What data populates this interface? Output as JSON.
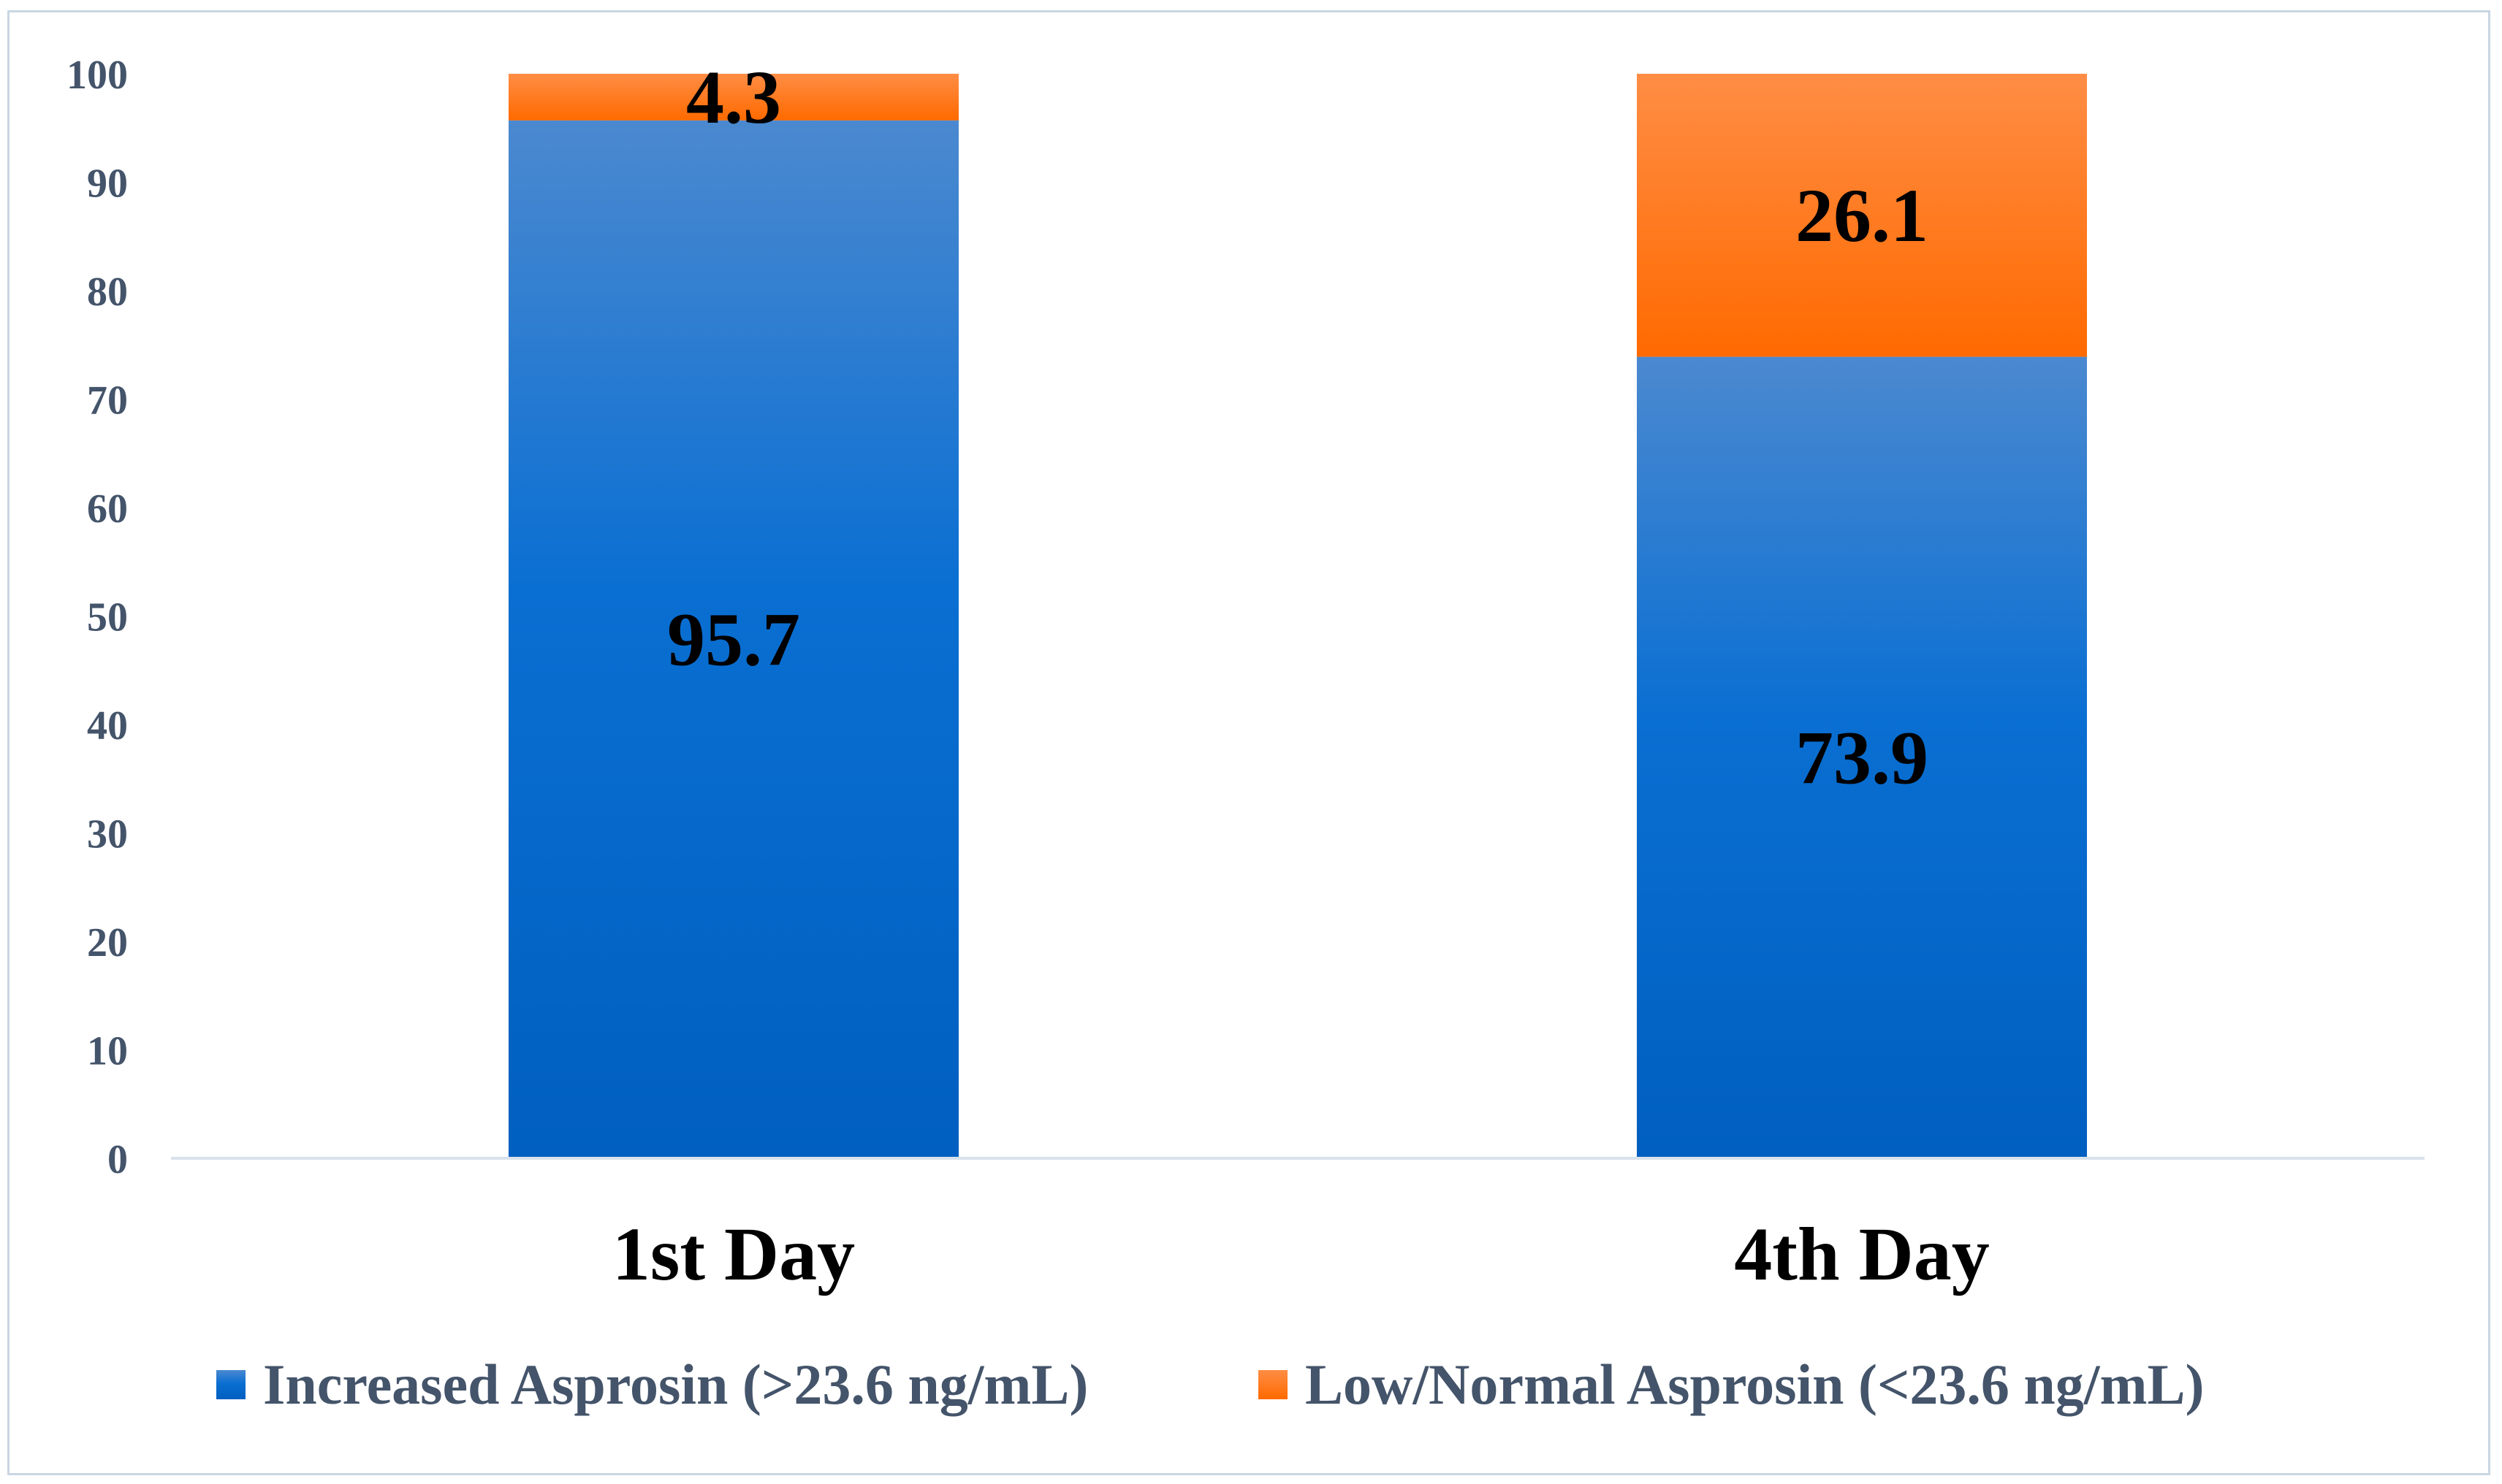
{
  "chart_data": {
    "type": "bar",
    "stacked": true,
    "categories": [
      "1st Day",
      "4th Day"
    ],
    "series": [
      {
        "name": "Increased Asprosin (>23.6 ng/mL)",
        "values": [
          95.7,
          73.9
        ],
        "color": "#0066cc"
      },
      {
        "name": "Low/Normal Asprosin (<23.6 ng/mL)",
        "values": [
          4.3,
          26.1
        ],
        "color": "#ff6a00"
      }
    ],
    "data_labels": [
      [
        "95.7",
        "73.9"
      ],
      [
        "4.3",
        "26.1"
      ]
    ],
    "ylim": [
      0,
      100
    ],
    "yticks": [
      "0",
      "10",
      "20",
      "30",
      "40",
      "50",
      "60",
      "70",
      "80",
      "90",
      "100"
    ],
    "grid": false,
    "legend_position": "bottom"
  }
}
